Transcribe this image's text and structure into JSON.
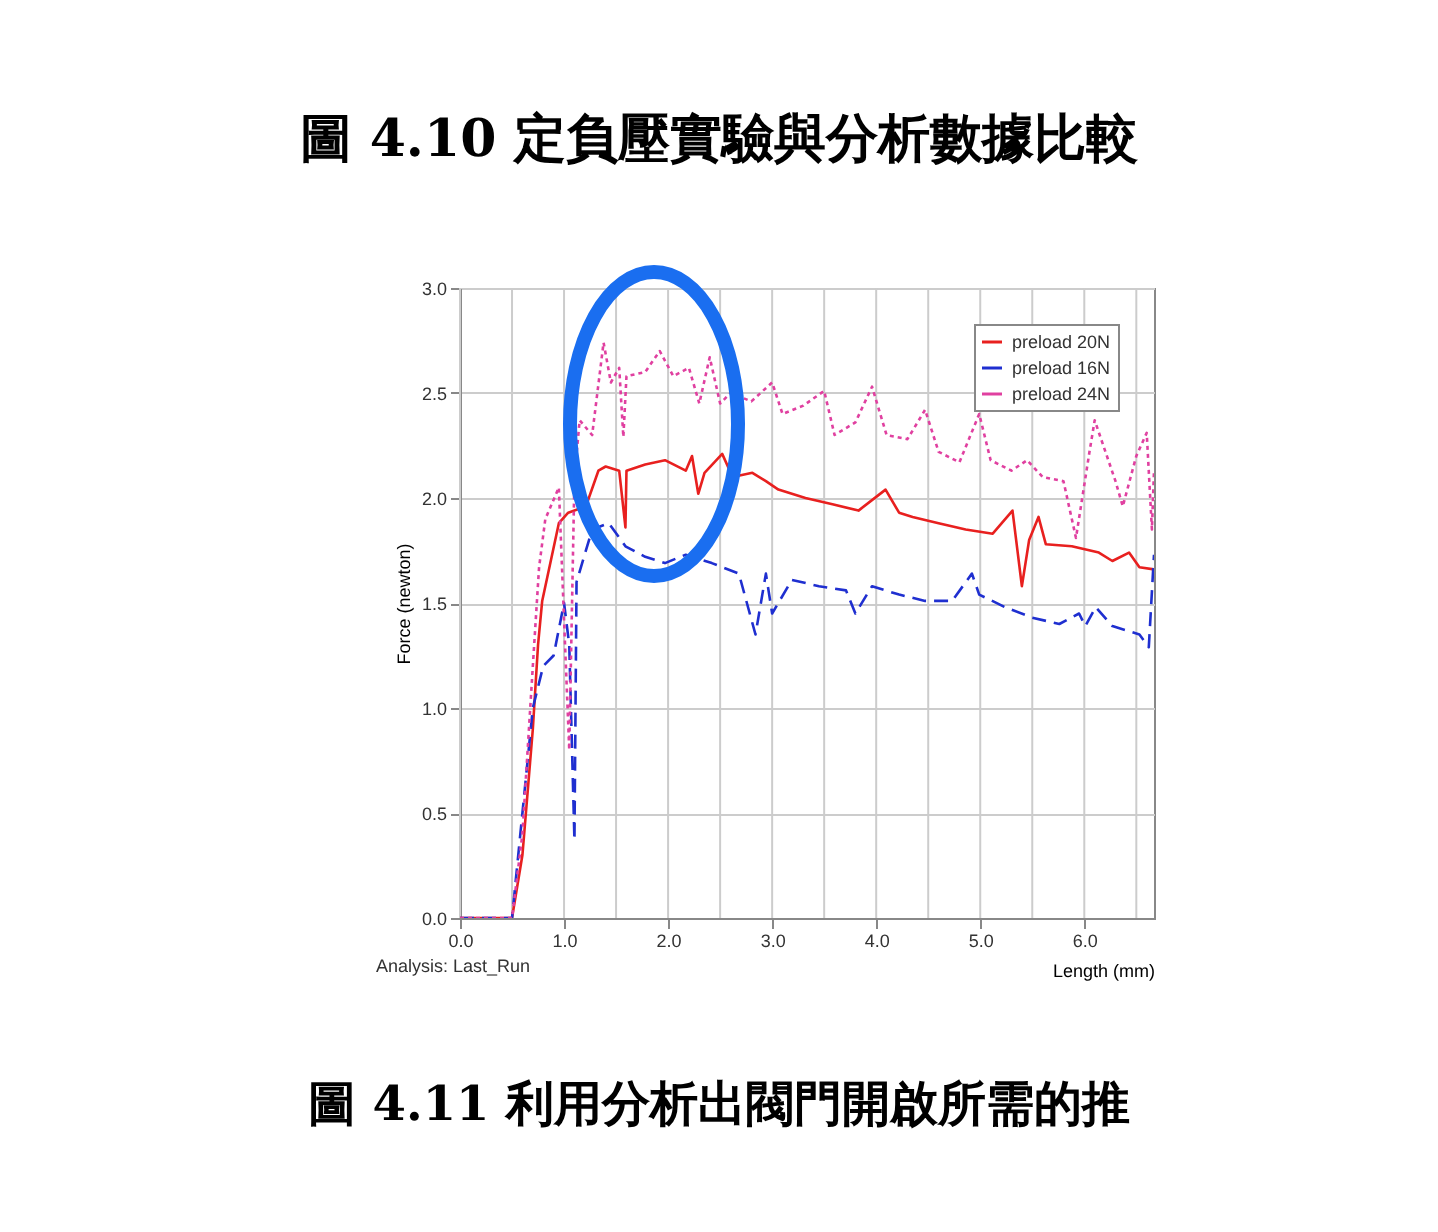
{
  "chart_data": {
    "type": "line",
    "title": "圖 4.10  定負壓實驗與分析數據比較",
    "xlabel": "Length (mm)",
    "ylabel": "Force (newton)",
    "annotations": [
      "Analysis:  Last_Run",
      "圖 4.11  利用分析出閥門開啟所需的推"
    ],
    "xlim": [
      0,
      6.67
    ],
    "ylim": [
      0,
      3.0
    ],
    "xticks": [
      {
        "value": 0,
        "label": "0.0"
      },
      {
        "value": 0.5,
        "label": null
      },
      {
        "value": 1,
        "label": "1.0"
      },
      {
        "value": 1.5,
        "label": null
      },
      {
        "value": 2,
        "label": "2.0"
      },
      {
        "value": 2.5,
        "label": null
      },
      {
        "value": 3,
        "label": "3.0"
      },
      {
        "value": 3.5,
        "label": null
      },
      {
        "value": 4,
        "label": "4.0"
      },
      {
        "value": 4.5,
        "label": null
      },
      {
        "value": 5,
        "label": "5.0"
      },
      {
        "value": 5.5,
        "label": null
      },
      {
        "value": 6,
        "label": "6.0"
      },
      {
        "value": 6.5,
        "label": null
      }
    ],
    "yticks": [
      {
        "value": 0,
        "label": "0.0"
      },
      {
        "value": 0.5,
        "label": "0.5"
      },
      {
        "value": 1,
        "label": "1.0"
      },
      {
        "value": 1.5,
        "label": "1.5"
      },
      {
        "value": 2,
        "label": "2.0"
      },
      {
        "value": 2.5,
        "label": "2.5"
      },
      {
        "value": 3,
        "label": "3.0"
      }
    ],
    "grid": true,
    "legend": "top right",
    "series": [
      {
        "name": "preload 20N",
        "color": "#e8201f",
        "line_style": "solid",
        "x": [
          0,
          0.5,
          0.6,
          0.7,
          0.75,
          0.79,
          0.95,
          1.04,
          1.21,
          1.33,
          1.4,
          1.53,
          1.59,
          1.6,
          1.78,
          1.97,
          2.17,
          2.23,
          2.29,
          2.35,
          2.52,
          2.62,
          2.81,
          2.94,
          3.06,
          3.32,
          3.58,
          3.83,
          4.09,
          4.22,
          4.35,
          4.6,
          4.86,
          5.12,
          5.31,
          5.4,
          5.47,
          5.56,
          5.63,
          5.88,
          6.14,
          6.27,
          6.43,
          6.53,
          6.67
        ],
        "values": [
          0,
          0,
          0.3,
          0.9,
          1.3,
          1.51,
          1.88,
          1.93,
          1.96,
          2.13,
          2.15,
          2.13,
          1.86,
          2.13,
          2.16,
          2.18,
          2.13,
          2.2,
          2.02,
          2.12,
          2.21,
          2.1,
          2.12,
          2.08,
          2.04,
          2.0,
          1.97,
          1.94,
          2.04,
          1.93,
          1.91,
          1.88,
          1.85,
          1.83,
          1.94,
          1.58,
          1.8,
          1.91,
          1.78,
          1.77,
          1.74,
          1.7,
          1.74,
          1.67,
          1.66
        ]
      },
      {
        "name": "preload 16N",
        "color": "#1f2fd0",
        "line_style": "dashed",
        "x": [
          0,
          0.5,
          0.6,
          0.7,
          0.8,
          0.9,
          1.0,
          1.05,
          1.1,
          1.12,
          1.27,
          1.43,
          1.59,
          1.78,
          1.97,
          2.17,
          2.42,
          2.68,
          2.84,
          2.94,
          3.0,
          3.19,
          3.45,
          3.71,
          3.8,
          3.96,
          4.22,
          4.47,
          4.73,
          4.92,
          4.99,
          5.24,
          5.5,
          5.76,
          5.95,
          6.01,
          6.11,
          6.27,
          6.53,
          6.62,
          6.67
        ],
        "values": [
          0,
          0,
          0.5,
          1.0,
          1.2,
          1.25,
          1.5,
          1.3,
          0.37,
          1.6,
          1.85,
          1.88,
          1.77,
          1.72,
          1.69,
          1.73,
          1.69,
          1.64,
          1.35,
          1.64,
          1.45,
          1.61,
          1.58,
          1.56,
          1.45,
          1.58,
          1.54,
          1.51,
          1.51,
          1.64,
          1.54,
          1.48,
          1.43,
          1.4,
          1.45,
          1.39,
          1.48,
          1.39,
          1.35,
          1.29,
          1.73
        ]
      },
      {
        "name": "preload 24N",
        "color": "#e040a0",
        "line_style": "dotted",
        "x": [
          0,
          0.5,
          0.6,
          0.7,
          0.76,
          0.82,
          0.95,
          1.0,
          1.05,
          1.1,
          1.15,
          1.27,
          1.38,
          1.45,
          1.53,
          1.57,
          1.6,
          1.78,
          1.92,
          2.05,
          2.2,
          2.3,
          2.4,
          2.5,
          2.6,
          2.8,
          3.0,
          3.1,
          3.3,
          3.5,
          3.6,
          3.8,
          3.96,
          4.1,
          4.3,
          4.47,
          4.6,
          4.8,
          4.99,
          5.1,
          5.3,
          5.45,
          5.6,
          5.8,
          5.92,
          6.05,
          6.1,
          6.3,
          6.37,
          6.5,
          6.6,
          6.65,
          6.67
        ],
        "values": [
          0,
          0,
          0.4,
          1.2,
          1.67,
          1.9,
          2.05,
          1.42,
          0.8,
          2.1,
          2.37,
          2.3,
          2.74,
          2.55,
          2.62,
          2.29,
          2.58,
          2.6,
          2.7,
          2.58,
          2.62,
          2.45,
          2.67,
          2.45,
          2.5,
          2.46,
          2.55,
          2.4,
          2.44,
          2.51,
          2.3,
          2.36,
          2.53,
          2.3,
          2.28,
          2.42,
          2.22,
          2.17,
          2.4,
          2.18,
          2.13,
          2.18,
          2.1,
          2.08,
          1.81,
          2.22,
          2.37,
          2.08,
          1.96,
          2.2,
          2.31,
          1.85,
          2.13
        ]
      }
    ]
  }
}
